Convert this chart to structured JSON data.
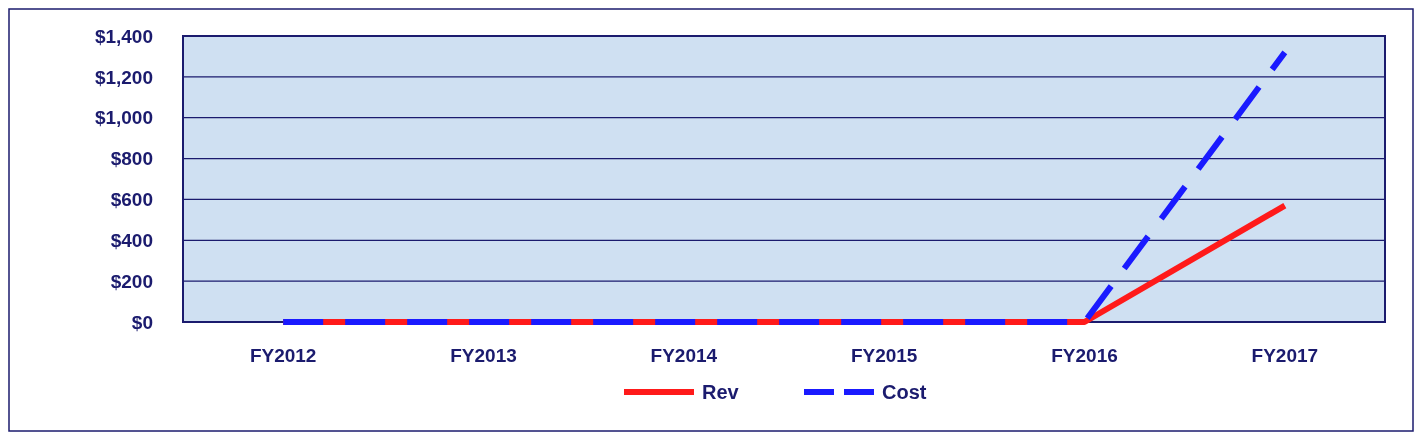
{
  "chart_data": {
    "type": "line",
    "categories": [
      "FY2012",
      "FY2013",
      "FY2014",
      "FY2015",
      "FY2016",
      "FY2017"
    ],
    "series": [
      {
        "name": "Rev",
        "color": "#ff1a1a",
        "values": [
          0,
          0,
          0,
          0,
          0,
          570
        ],
        "line_style": "solid"
      },
      {
        "name": "Cost",
        "color": "#1a1aff",
        "values": [
          0,
          0,
          0,
          0,
          0,
          1320
        ],
        "line_style": "dashed"
      }
    ],
    "ylim": [
      0,
      1400
    ],
    "yticks": [
      {
        "value": 0,
        "label": "$0"
      },
      {
        "value": 200,
        "label": "$200"
      },
      {
        "value": 400,
        "label": "$400"
      },
      {
        "value": 600,
        "label": "$600"
      },
      {
        "value": 800,
        "label": "$800"
      },
      {
        "value": 1000,
        "label": "$1,000"
      },
      {
        "value": 1200,
        "label": "$1,200"
      },
      {
        "value": 1400,
        "label": "$1,400"
      }
    ],
    "grid": "y",
    "legend": "bottom",
    "marker": "none"
  }
}
